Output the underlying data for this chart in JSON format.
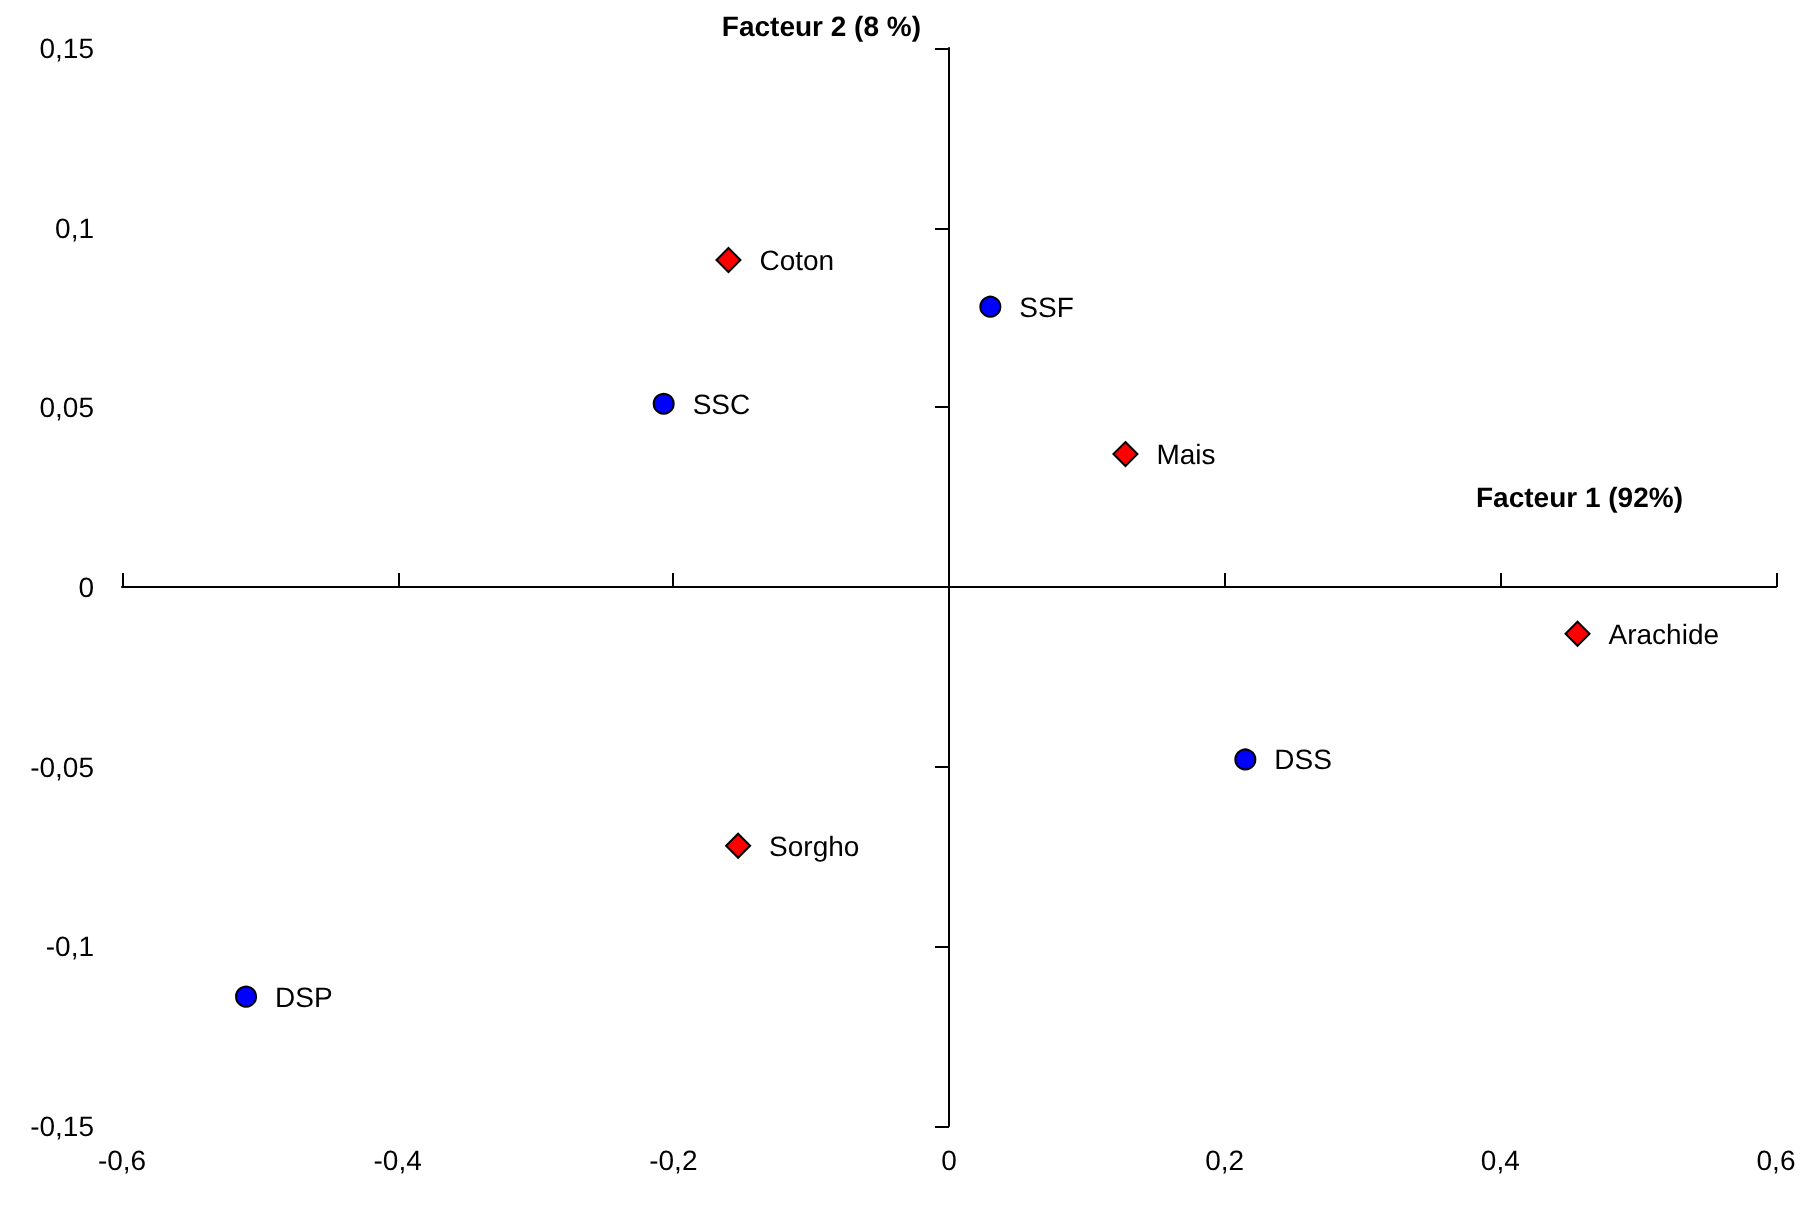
{
  "chart_data": {
    "type": "scatter",
    "xlabel": "Facteur 1 (92%)",
    "ylabel": "Facteur 2 (8 %)",
    "xlim": [
      -0.6,
      0.6
    ],
    "xticks": [
      {
        "value": -0.6,
        "label": "-0,6"
      },
      {
        "value": -0.4,
        "label": "-0,4"
      },
      {
        "value": -0.2,
        "label": "-0,2"
      },
      0,
      {
        "value": 0.2,
        "label": "0,2"
      },
      {
        "value": 0.4,
        "label": "0,4"
      },
      {
        "value": 0.6,
        "label": "0,6"
      }
    ],
    "ylim": [
      -0.15,
      0.15
    ],
    "yticks": [
      {
        "value": -0.15,
        "label": "-0,15"
      },
      {
        "value": -0.1,
        "label": "-0,1"
      },
      {
        "value": -0.05,
        "label": "-0,05"
      },
      0,
      {
        "value": 0.05,
        "label": "0,05"
      },
      {
        "value": 0.1,
        "label": "0,1"
      },
      {
        "value": 0.15,
        "label": "0,15"
      }
    ],
    "series": [
      {
        "color": "#0000ff",
        "marker": "circle",
        "x": [
          0.03,
          -0.207,
          0.215,
          -0.51
        ],
        "values": [
          0.078,
          0.051,
          -0.048,
          -0.114
        ],
        "value_labels": [
          "SSF",
          "SSC",
          "DSS",
          "DSP"
        ]
      },
      {
        "color": "#ff0000",
        "marker": "diamond",
        "x": [
          -0.16,
          0.128,
          0.456,
          -0.153
        ],
        "values": [
          0.091,
          0.037,
          -0.013,
          -0.072
        ],
        "value_labels": [
          "Coton",
          "Mais",
          "Arachide",
          "Sorgho"
        ]
      }
    ]
  }
}
